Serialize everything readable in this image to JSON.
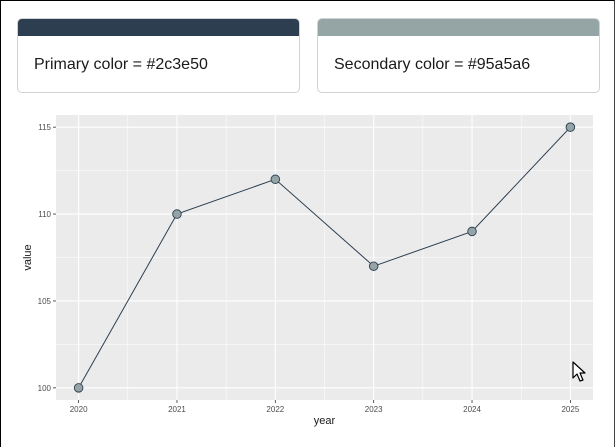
{
  "cards": {
    "primary": {
      "label": "Primary color = #2c3e50",
      "color": "#2c3e50"
    },
    "secondary": {
      "label": "Secondary color = #95a5a6",
      "color": "#95a5a6"
    }
  },
  "chart_data": {
    "type": "line",
    "title": "",
    "xlabel": "year",
    "ylabel": "value",
    "x": [
      2020,
      2021,
      2022,
      2023,
      2024,
      2025
    ],
    "series": [
      {
        "values": [
          100,
          110,
          112,
          107,
          109,
          115
        ],
        "line_color": "#2c3e50",
        "point_color": "#95a5a6"
      }
    ],
    "xticks": [
      "2020",
      "2021",
      "2022",
      "2023",
      "2024",
      "2025"
    ],
    "yticks": [
      "100",
      "105",
      "110",
      "115"
    ],
    "ylim": [
      99.3,
      115.7
    ],
    "xlim": [
      2019.77,
      2025.23
    ],
    "grid": true,
    "panel_background": "#ebebeb",
    "grid_color": "#ffffff"
  },
  "icons": {
    "cursor": "mouse-pointer-icon"
  }
}
